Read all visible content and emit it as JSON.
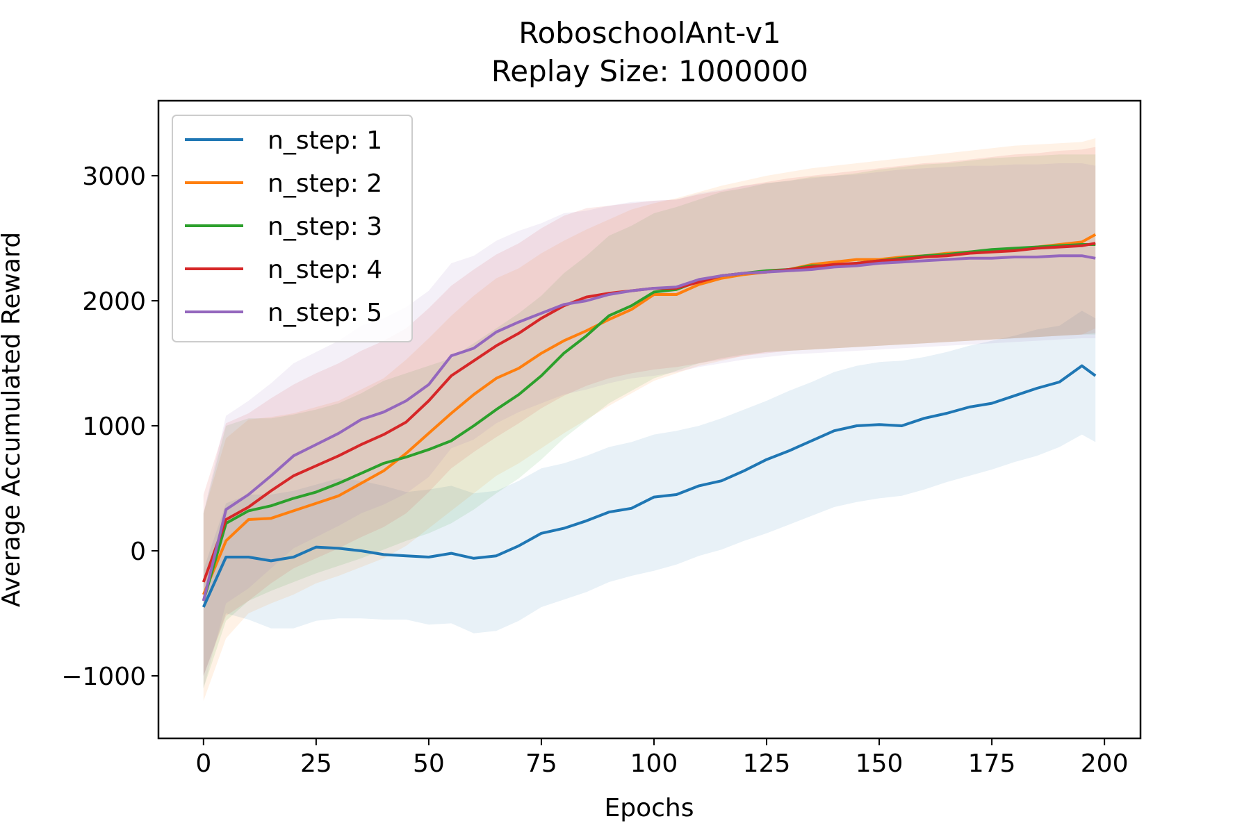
{
  "chart_data": {
    "type": "line",
    "title_line1": "RoboschoolAnt-v1",
    "title_line2": "Replay Size: 1000000",
    "xlabel": "Epochs",
    "ylabel": "Average Accumulated Reward",
    "xlim": [
      -10,
      208
    ],
    "ylim": [
      -1500,
      3600
    ],
    "xticks": [
      0,
      25,
      50,
      75,
      100,
      125,
      150,
      175,
      200
    ],
    "xtick_labels": [
      "0",
      "25",
      "50",
      "75",
      "100",
      "125",
      "150",
      "175",
      "200"
    ],
    "yticks": [
      -1000,
      0,
      1000,
      2000,
      3000
    ],
    "ytick_labels": [
      "−1000",
      "0",
      "1000",
      "2000",
      "3000"
    ],
    "grid": false,
    "legend_position": "top-left",
    "series": [
      {
        "name": "n_step: 1",
        "color": "#1f77b4",
        "x": [
          0,
          5,
          10,
          15,
          20,
          25,
          30,
          35,
          40,
          45,
          50,
          55,
          60,
          65,
          70,
          75,
          80,
          85,
          90,
          95,
          100,
          105,
          110,
          115,
          120,
          125,
          130,
          135,
          140,
          145,
          150,
          155,
          160,
          165,
          170,
          175,
          180,
          185,
          190,
          195,
          198
        ],
        "mean": [
          -450,
          -50,
          -50,
          -80,
          -50,
          30,
          20,
          0,
          -30,
          -40,
          -50,
          -20,
          -60,
          -40,
          40,
          140,
          180,
          240,
          310,
          340,
          430,
          450,
          520,
          560,
          640,
          730,
          800,
          880,
          960,
          1000,
          1010,
          1000,
          1060,
          1100,
          1150,
          1180,
          1240,
          1300,
          1350,
          1480,
          1400
        ],
        "lower": [
          -1000,
          -500,
          -550,
          -620,
          -620,
          -560,
          -540,
          -540,
          -550,
          -550,
          -590,
          -580,
          -660,
          -640,
          -560,
          -450,
          -390,
          -330,
          -250,
          -200,
          -160,
          -110,
          -40,
          10,
          80,
          140,
          210,
          280,
          350,
          390,
          420,
          440,
          490,
          550,
          600,
          650,
          710,
          760,
          830,
          930,
          870
        ],
        "upper": [
          -150,
          380,
          450,
          450,
          480,
          530,
          580,
          560,
          520,
          470,
          490,
          520,
          460,
          480,
          560,
          660,
          700,
          760,
          830,
          870,
          930,
          960,
          1000,
          1060,
          1130,
          1200,
          1280,
          1350,
          1430,
          1480,
          1510,
          1520,
          1550,
          1590,
          1640,
          1680,
          1720,
          1770,
          1800,
          1920,
          1860
        ]
      },
      {
        "name": "n_step: 2",
        "color": "#ff7f0e",
        "x": [
          0,
          5,
          10,
          15,
          20,
          25,
          30,
          35,
          40,
          45,
          50,
          55,
          60,
          65,
          70,
          75,
          80,
          85,
          90,
          95,
          100,
          105,
          110,
          115,
          120,
          125,
          130,
          135,
          140,
          145,
          150,
          155,
          160,
          165,
          170,
          175,
          180,
          185,
          190,
          195,
          198
        ],
        "mean": [
          -350,
          80,
          250,
          260,
          320,
          380,
          440,
          540,
          640,
          780,
          940,
          1100,
          1250,
          1380,
          1460,
          1580,
          1680,
          1760,
          1850,
          1930,
          2050,
          2050,
          2130,
          2180,
          2210,
          2230,
          2250,
          2290,
          2310,
          2330,
          2330,
          2350,
          2360,
          2380,
          2390,
          2400,
          2410,
          2430,
          2450,
          2470,
          2530
        ],
        "lower": [
          -1200,
          -700,
          -500,
          -420,
          -350,
          -260,
          -200,
          -130,
          -60,
          40,
          180,
          320,
          460,
          600,
          700,
          820,
          940,
          1050,
          1160,
          1260,
          1360,
          1420,
          1480,
          1520,
          1560,
          1590,
          1600,
          1610,
          1620,
          1630,
          1640,
          1650,
          1660,
          1670,
          1680,
          1690,
          1700,
          1710,
          1720,
          1730,
          1780
        ],
        "upper": [
          300,
          900,
          1050,
          1070,
          1100,
          1150,
          1200,
          1290,
          1380,
          1530,
          1700,
          1880,
          2040,
          2180,
          2260,
          2380,
          2480,
          2570,
          2650,
          2730,
          2780,
          2820,
          2870,
          2920,
          2960,
          3000,
          3030,
          3060,
          3080,
          3100,
          3120,
          3140,
          3160,
          3180,
          3200,
          3220,
          3240,
          3250,
          3260,
          3270,
          3300
        ]
      },
      {
        "name": "n_step: 3",
        "color": "#2ca02c",
        "x": [
          0,
          5,
          10,
          15,
          20,
          25,
          30,
          35,
          40,
          45,
          50,
          55,
          60,
          65,
          70,
          75,
          80,
          85,
          90,
          95,
          100,
          105,
          110,
          115,
          120,
          125,
          130,
          135,
          140,
          145,
          150,
          155,
          160,
          165,
          170,
          175,
          180,
          185,
          190,
          195,
          198
        ],
        "mean": [
          -400,
          220,
          320,
          360,
          420,
          470,
          540,
          620,
          700,
          750,
          810,
          880,
          1000,
          1130,
          1250,
          1400,
          1580,
          1720,
          1880,
          1960,
          2070,
          2090,
          2160,
          2200,
          2220,
          2240,
          2250,
          2280,
          2280,
          2300,
          2320,
          2340,
          2360,
          2370,
          2390,
          2410,
          2420,
          2430,
          2440,
          2450,
          2450
        ],
        "lower": [
          -1100,
          -560,
          -400,
          -320,
          -250,
          -180,
          -120,
          -60,
          10,
          80,
          140,
          220,
          330,
          460,
          580,
          730,
          900,
          1040,
          1180,
          1280,
          1380,
          1440,
          1500,
          1540,
          1570,
          1590,
          1600,
          1610,
          1620,
          1630,
          1640,
          1650,
          1660,
          1670,
          1680,
          1690,
          1700,
          1710,
          1720,
          1730,
          1730
        ],
        "upper": [
          300,
          1000,
          1060,
          1060,
          1090,
          1130,
          1180,
          1260,
          1360,
          1420,
          1480,
          1540,
          1660,
          1780,
          1900,
          2040,
          2220,
          2360,
          2520,
          2600,
          2700,
          2750,
          2810,
          2870,
          2900,
          2940,
          2960,
          2990,
          3000,
          3020,
          3050,
          3070,
          3090,
          3100,
          3120,
          3140,
          3150,
          3160,
          3170,
          3170,
          3170
        ]
      },
      {
        "name": "n_step: 4",
        "color": "#d62728",
        "x": [
          0,
          5,
          10,
          15,
          20,
          25,
          30,
          35,
          40,
          45,
          50,
          55,
          60,
          65,
          70,
          75,
          80,
          85,
          90,
          95,
          100,
          105,
          110,
          115,
          120,
          125,
          130,
          135,
          140,
          145,
          150,
          155,
          160,
          165,
          170,
          175,
          180,
          185,
          190,
          195,
          198
        ],
        "mean": [
          -250,
          250,
          350,
          480,
          600,
          680,
          760,
          850,
          930,
          1030,
          1200,
          1400,
          1520,
          1640,
          1740,
          1860,
          1960,
          2030,
          2060,
          2080,
          2100,
          2100,
          2150,
          2200,
          2220,
          2230,
          2250,
          2270,
          2290,
          2300,
          2320,
          2330,
          2350,
          2360,
          2380,
          2390,
          2400,
          2420,
          2430,
          2440,
          2460
        ],
        "lower": [
          -1000,
          -520,
          -400,
          -260,
          -140,
          -60,
          20,
          110,
          190,
          300,
          470,
          660,
          790,
          910,
          1020,
          1140,
          1240,
          1320,
          1380,
          1420,
          1450,
          1470,
          1500,
          1530,
          1560,
          1580,
          1600,
          1610,
          1620,
          1630,
          1640,
          1650,
          1660,
          1670,
          1680,
          1690,
          1700,
          1710,
          1720,
          1730,
          1740
        ],
        "upper": [
          450,
          1020,
          1100,
          1220,
          1330,
          1420,
          1500,
          1600,
          1680,
          1780,
          1940,
          2120,
          2250,
          2370,
          2460,
          2580,
          2680,
          2740,
          2760,
          2780,
          2800,
          2810,
          2850,
          2880,
          2920,
          2950,
          2980,
          3000,
          3020,
          3040,
          3060,
          3080,
          3100,
          3110,
          3130,
          3150,
          3170,
          3180,
          3200,
          3210,
          3230
        ]
      },
      {
        "name": "n_step: 5",
        "color": "#9467bd",
        "x": [
          0,
          5,
          10,
          15,
          20,
          25,
          30,
          35,
          40,
          45,
          50,
          55,
          60,
          65,
          70,
          75,
          80,
          85,
          90,
          95,
          100,
          105,
          110,
          115,
          120,
          125,
          130,
          135,
          140,
          145,
          150,
          155,
          160,
          165,
          170,
          175,
          180,
          185,
          190,
          195,
          198
        ],
        "mean": [
          -400,
          330,
          450,
          600,
          760,
          850,
          940,
          1050,
          1110,
          1200,
          1330,
          1560,
          1620,
          1750,
          1830,
          1900,
          1970,
          2000,
          2050,
          2080,
          2100,
          2110,
          2170,
          2200,
          2220,
          2230,
          2240,
          2250,
          2270,
          2280,
          2300,
          2310,
          2320,
          2330,
          2340,
          2340,
          2350,
          2350,
          2360,
          2360,
          2340
        ],
        "lower": [
          -1100,
          -420,
          -300,
          -140,
          20,
          110,
          200,
          300,
          370,
          460,
          590,
          820,
          890,
          1020,
          1110,
          1180,
          1250,
          1290,
          1340,
          1380,
          1400,
          1430,
          1470,
          1500,
          1530,
          1550,
          1570,
          1580,
          1590,
          1600,
          1610,
          1620,
          1630,
          1640,
          1650,
          1660,
          1670,
          1680,
          1690,
          1700,
          1700
        ],
        "upper": [
          300,
          1080,
          1200,
          1340,
          1500,
          1590,
          1680,
          1800,
          1860,
          1950,
          2080,
          2300,
          2360,
          2480,
          2560,
          2620,
          2700,
          2720,
          2760,
          2790,
          2800,
          2810,
          2860,
          2890,
          2920,
          2940,
          2960,
          2980,
          3000,
          3010,
          3030,
          3050,
          3060,
          3070,
          3080,
          3080,
          3090,
          3090,
          3100,
          3100,
          3080
        ]
      }
    ]
  }
}
